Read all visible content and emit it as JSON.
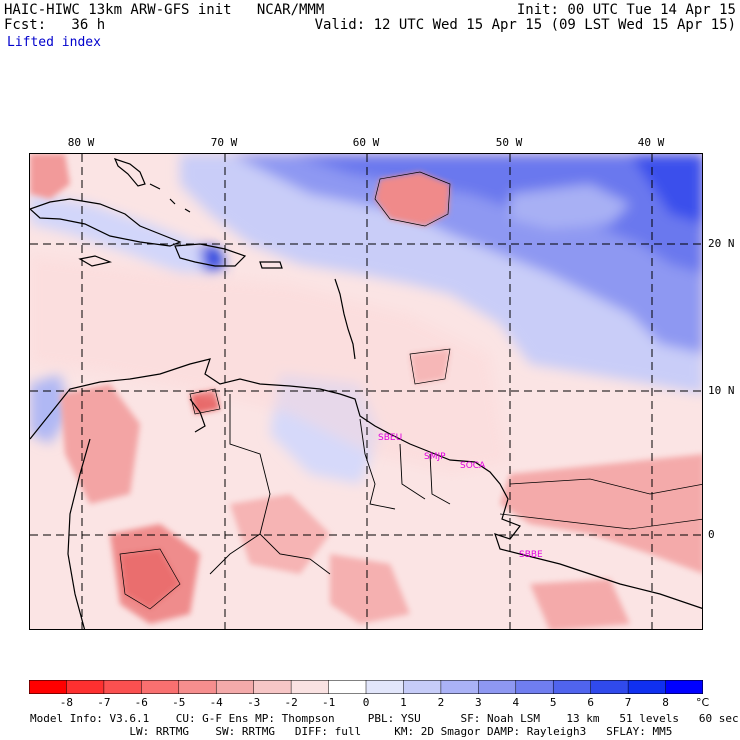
{
  "header": {
    "model_title": "HAIC-HIWC 13km ARW-GFS init   NCAR/MMM",
    "forecast_hour": "Fcst:   36 h",
    "field_name": "Lifted index",
    "init_time": "Init: 00 UTC Tue 14 Apr 15",
    "valid_time": "Valid: 12 UTC Wed 15 Apr 15 (09 LST Wed 15 Apr 15)"
  },
  "map": {
    "longitude_labels": [
      "80 W",
      "70 W",
      "60 W",
      "50 W",
      "40 W"
    ],
    "latitude_labels": [
      "20 N",
      "10 N",
      "0"
    ],
    "stations": [
      "SBEU",
      "SMJP",
      "SOCA",
      "SBBE"
    ],
    "colors": {
      "strong_positive": "#0000ff",
      "positive": "#5a6cf0",
      "weak_positive": "#c8ccf8",
      "neutral": "#ffffff",
      "weak_negative": "#fde3e3",
      "negative": "#f6a6a6",
      "strong_negative": "#ec5a5a"
    }
  },
  "colorbar": {
    "labels": [
      "-8",
      "-7",
      "-6",
      "-5",
      "-4",
      "-3",
      "-2",
      "-1",
      "0",
      "1",
      "2",
      "3",
      "4",
      "5",
      "6",
      "7",
      "8"
    ],
    "unit": "°C",
    "colors": [
      "#ff0000",
      "#fe3030",
      "#fb5050",
      "#f97070",
      "#f68e8e",
      "#f4aaaa",
      "#f7c6c6",
      "#fae2e2",
      "#ffffff",
      "#e2e6fb",
      "#c6ccf8",
      "#aab2f6",
      "#8e98f2",
      "#707ef0",
      "#5064ee",
      "#304aec",
      "#1030f0",
      "#0000ff"
    ]
  },
  "footer": {
    "line1": "Model Info: V3.6.1    CU: G-F Ens MP: Thompson     PBL: YSU      SF: Noah LSM    13 km   51 levels   60 sec",
    "line2": "               LW: RRTMG    SW: RRTMG   DIFF: full     KM: 2D Smagor DAMP: Rayleigh3   SFLAY: MM5"
  }
}
